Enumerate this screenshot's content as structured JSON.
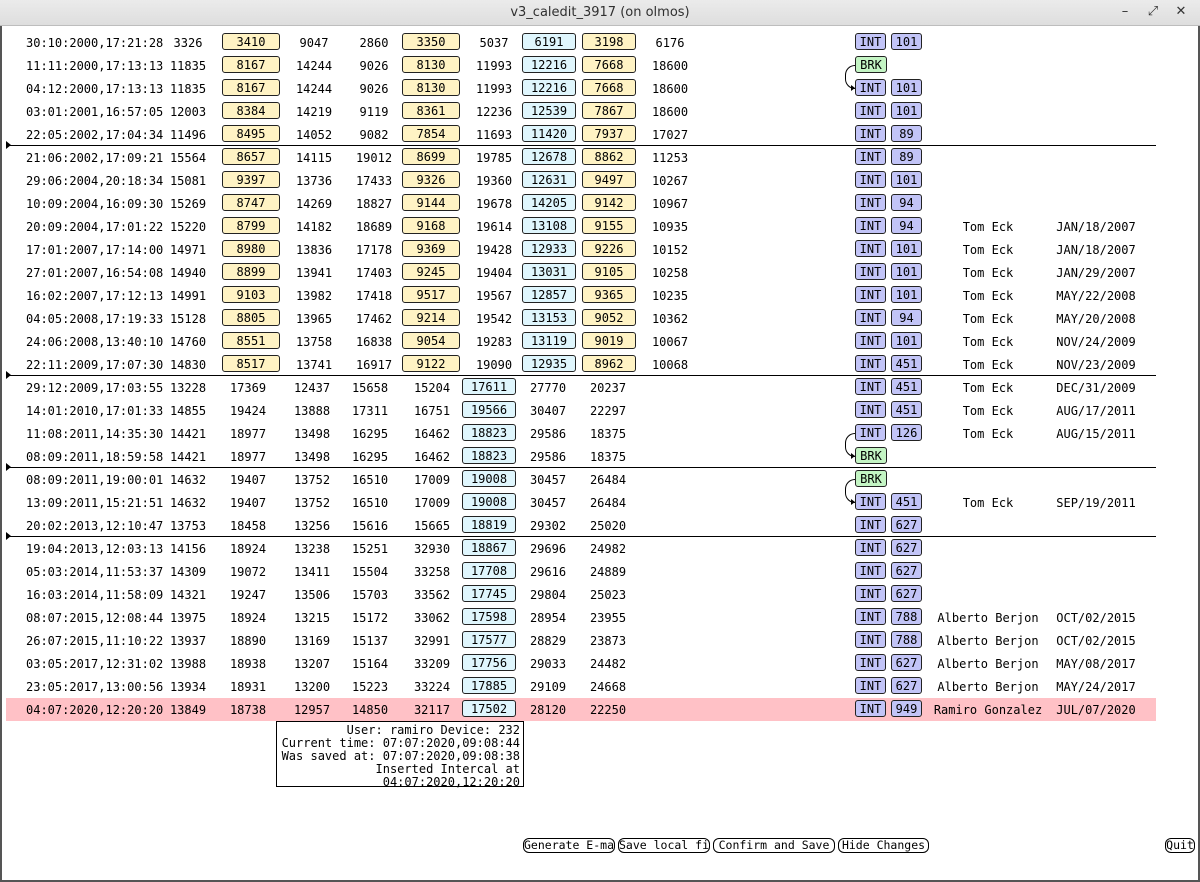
{
  "window": {
    "title": "v3_caledit_3917 (on olmos)",
    "controls": {
      "minimize": "–",
      "restore": "⤢",
      "close": "✕"
    }
  },
  "colors": {
    "highlight_row": "#ffc1c6",
    "yellow_cell": "#fff3c4",
    "cyan_cell": "#dff6fd",
    "tag": "#c2c4f7",
    "brk_tag": "#c4f5c4"
  },
  "rows": [
    {
      "ts": "30:10:2000,17:21:28",
      "c": [
        "3326",
        "3410",
        "9047",
        "2860",
        "3350",
        "5037",
        "6191",
        "3198",
        "6176"
      ],
      "layout": "A",
      "tag": "INT",
      "num": "101",
      "user": "",
      "date": ""
    },
    {
      "ts": "11:11:2000,17:13:13",
      "c": [
        "11835",
        "8167",
        "14244",
        "9026",
        "8130",
        "11993",
        "12216",
        "7668",
        "18600"
      ],
      "layout": "A",
      "tag": "BRK",
      "num": "",
      "user": "",
      "date": ""
    },
    {
      "ts": "04:12:2000,17:13:13",
      "c": [
        "11835",
        "8167",
        "14244",
        "9026",
        "8130",
        "11993",
        "12216",
        "7668",
        "18600"
      ],
      "layout": "A",
      "tag": "INT",
      "num": "101",
      "user": "",
      "date": ""
    },
    {
      "ts": "03:01:2001,16:57:05",
      "c": [
        "12003",
        "8384",
        "14219",
        "9119",
        "8361",
        "12236",
        "12539",
        "7867",
        "18600"
      ],
      "layout": "A",
      "tag": "INT",
      "num": "101",
      "user": "",
      "date": ""
    },
    {
      "ts": "22:05:2002,17:04:34",
      "c": [
        "11496",
        "8495",
        "14052",
        "9082",
        "7854",
        "11693",
        "11420",
        "7937",
        "17027"
      ],
      "layout": "A",
      "tag": "INT",
      "num": "89",
      "user": "",
      "date": ""
    },
    {
      "ts": "21:06:2002,17:09:21",
      "c": [
        "15564",
        "8657",
        "14115",
        "19012",
        "8699",
        "19785",
        "12678",
        "8862",
        "11253"
      ],
      "layout": "A",
      "tag": "INT",
      "num": "89",
      "user": "",
      "date": ""
    },
    {
      "ts": "29:06:2004,20:18:34",
      "c": [
        "15081",
        "9397",
        "13736",
        "17433",
        "9326",
        "19360",
        "12631",
        "9497",
        "10267"
      ],
      "layout": "A",
      "tag": "INT",
      "num": "101",
      "user": "",
      "date": ""
    },
    {
      "ts": "10:09:2004,16:09:30",
      "c": [
        "15269",
        "8747",
        "14269",
        "18827",
        "9144",
        "19678",
        "14205",
        "9142",
        "10967"
      ],
      "layout": "A",
      "tag": "INT",
      "num": "94",
      "user": "",
      "date": ""
    },
    {
      "ts": "20:09:2004,17:01:22",
      "c": [
        "15220",
        "8799",
        "14182",
        "18689",
        "9168",
        "19614",
        "13108",
        "9155",
        "10935"
      ],
      "layout": "A",
      "tag": "INT",
      "num": "94",
      "user": "Tom Eck",
      "date": "JAN/18/2007"
    },
    {
      "ts": "17:01:2007,17:14:00",
      "c": [
        "14971",
        "8980",
        "13836",
        "17178",
        "9369",
        "19428",
        "12933",
        "9226",
        "10152"
      ],
      "layout": "A",
      "tag": "INT",
      "num": "101",
      "user": "Tom Eck",
      "date": "JAN/18/2007"
    },
    {
      "ts": "27:01:2007,16:54:08",
      "c": [
        "14940",
        "8899",
        "13941",
        "17403",
        "9245",
        "19404",
        "13031",
        "9105",
        "10258"
      ],
      "layout": "A",
      "tag": "INT",
      "num": "101",
      "user": "Tom Eck",
      "date": "JAN/29/2007"
    },
    {
      "ts": "16:02:2007,17:12:13",
      "c": [
        "14991",
        "9103",
        "13982",
        "17418",
        "9517",
        "19567",
        "12857",
        "9365",
        "10235"
      ],
      "layout": "A",
      "tag": "INT",
      "num": "101",
      "user": "Tom Eck",
      "date": "MAY/22/2008"
    },
    {
      "ts": "04:05:2008,17:19:33",
      "c": [
        "15128",
        "8805",
        "13965",
        "17462",
        "9214",
        "19542",
        "13153",
        "9052",
        "10362"
      ],
      "layout": "A",
      "tag": "INT",
      "num": "94",
      "user": "Tom Eck",
      "date": "MAY/20/2008"
    },
    {
      "ts": "24:06:2008,13:40:10",
      "c": [
        "14760",
        "8551",
        "13758",
        "16838",
        "9054",
        "19283",
        "13119",
        "9019",
        "10067"
      ],
      "layout": "A",
      "tag": "INT",
      "num": "101",
      "user": "Tom Eck",
      "date": "NOV/24/2009"
    },
    {
      "ts": "22:11:2009,17:07:30",
      "c": [
        "14830",
        "8517",
        "13741",
        "16917",
        "9122",
        "19090",
        "12935",
        "8962",
        "10068"
      ],
      "layout": "A",
      "tag": "INT",
      "num": "451",
      "user": "Tom Eck",
      "date": "NOV/23/2009"
    },
    {
      "ts": "29:12:2009,17:03:55",
      "c": [
        "13228",
        "17369",
        "12437",
        "15658",
        "15204",
        "17611",
        "27770",
        "20237"
      ],
      "layout": "B",
      "tag": "INT",
      "num": "451",
      "user": "Tom Eck",
      "date": "DEC/31/2009"
    },
    {
      "ts": "14:01:2010,17:01:33",
      "c": [
        "14855",
        "19424",
        "13888",
        "17311",
        "16751",
        "19566",
        "30407",
        "22297"
      ],
      "layout": "B",
      "tag": "INT",
      "num": "451",
      "user": "Tom Eck",
      "date": "AUG/17/2011"
    },
    {
      "ts": "11:08:2011,14:35:30",
      "c": [
        "14421",
        "18977",
        "13498",
        "16295",
        "16462",
        "18823",
        "29586",
        "18375"
      ],
      "layout": "B",
      "tag": "INT",
      "num": "126",
      "user": "Tom Eck",
      "date": "AUG/15/2011"
    },
    {
      "ts": "08:09:2011,18:59:58",
      "c": [
        "14421",
        "18977",
        "13498",
        "16295",
        "16462",
        "18823",
        "29586",
        "18375"
      ],
      "layout": "B",
      "tag": "BRK",
      "num": "",
      "user": "",
      "date": ""
    },
    {
      "ts": "08:09:2011,19:00:01",
      "c": [
        "14632",
        "19407",
        "13752",
        "16510",
        "17009",
        "19008",
        "30457",
        "26484"
      ],
      "layout": "B",
      "tag": "BRK",
      "num": "",
      "user": "",
      "date": ""
    },
    {
      "ts": "13:09:2011,15:21:51",
      "c": [
        "14632",
        "19407",
        "13752",
        "16510",
        "17009",
        "19008",
        "30457",
        "26484"
      ],
      "layout": "B",
      "tag": "INT",
      "num": "451",
      "user": "Tom Eck",
      "date": "SEP/19/2011"
    },
    {
      "ts": "20:02:2013,12:10:47",
      "c": [
        "13753",
        "18458",
        "13256",
        "15616",
        "15665",
        "18819",
        "29302",
        "25020"
      ],
      "layout": "B",
      "tag": "INT",
      "num": "627",
      "user": "",
      "date": ""
    },
    {
      "ts": "19:04:2013,12:03:13",
      "c": [
        "14156",
        "18924",
        "13238",
        "15251",
        "32930",
        "18867",
        "29696",
        "24982"
      ],
      "layout": "B",
      "tag": "INT",
      "num": "627",
      "user": "",
      "date": ""
    },
    {
      "ts": "05:03:2014,11:53:37",
      "c": [
        "14309",
        "19072",
        "13411",
        "15504",
        "33258",
        "17708",
        "29616",
        "24889"
      ],
      "layout": "B",
      "tag": "INT",
      "num": "627",
      "user": "",
      "date": ""
    },
    {
      "ts": "16:03:2014,11:58:09",
      "c": [
        "14321",
        "19247",
        "13506",
        "15703",
        "33562",
        "17745",
        "29804",
        "25023"
      ],
      "layout": "B",
      "tag": "INT",
      "num": "627",
      "user": "",
      "date": ""
    },
    {
      "ts": "08:07:2015,12:08:44",
      "c": [
        "13975",
        "18924",
        "13215",
        "15172",
        "33062",
        "17598",
        "28954",
        "23955"
      ],
      "layout": "B",
      "tag": "INT",
      "num": "788",
      "user": "Alberto Berjon",
      "date": "OCT/02/2015"
    },
    {
      "ts": "26:07:2015,11:10:22",
      "c": [
        "13937",
        "18890",
        "13169",
        "15137",
        "32991",
        "17577",
        "28829",
        "23873"
      ],
      "layout": "B",
      "tag": "INT",
      "num": "788",
      "user": "Alberto Berjon",
      "date": "OCT/02/2015"
    },
    {
      "ts": "03:05:2017,12:31:02",
      "c": [
        "13988",
        "18938",
        "13207",
        "15164",
        "33209",
        "17756",
        "29033",
        "24482"
      ],
      "layout": "B",
      "tag": "INT",
      "num": "627",
      "user": "Alberto Berjon",
      "date": "MAY/08/2017"
    },
    {
      "ts": "23:05:2017,13:00:56",
      "c": [
        "13934",
        "18931",
        "13200",
        "15223",
        "33224",
        "17885",
        "29109",
        "24668"
      ],
      "layout": "B",
      "tag": "INT",
      "num": "627",
      "user": "Alberto Berjon",
      "date": "MAY/24/2017"
    },
    {
      "ts": "04:07:2020,12:20:20",
      "c": [
        "13849",
        "18738",
        "12957",
        "14850",
        "32117",
        "17502",
        "28120",
        "22250"
      ],
      "layout": "B",
      "tag": "INT",
      "num": "949",
      "user": "Ramiro Gonzalez",
      "date": "JUL/07/2020",
      "selected": true
    }
  ],
  "separators_after_row": [
    4,
    14,
    18,
    21
  ],
  "brk_links": [
    [
      1,
      2
    ],
    [
      17,
      18
    ],
    [
      19,
      20
    ]
  ],
  "info": {
    "line1": "User: ramiro Device: 232",
    "line2": "Current time: 07:07:2020,09:08:44",
    "line3": "Was saved at: 07:07:2020,09:08:38",
    "line4": "Inserted Intercal at 04:07:2020,12:20:20"
  },
  "buttons": {
    "generate_email": "Generate E-mail",
    "save_local": "Save local file",
    "confirm_save": "Confirm and Save",
    "hide_changes": "Hide Changes",
    "quit": "Quit"
  }
}
